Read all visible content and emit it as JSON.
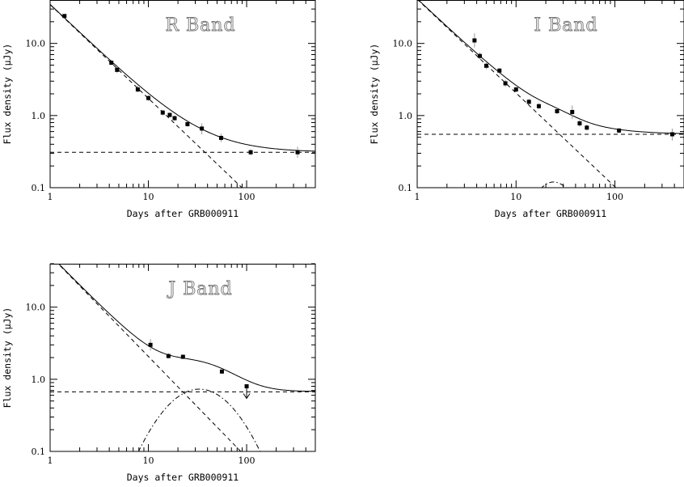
{
  "chart_data": [
    {
      "type": "scatter",
      "title": "R Band",
      "xlabel": "Days after GRB000911",
      "ylabel": "Flux density (μJy)",
      "xscale": "log",
      "yscale": "log",
      "xlim": [
        1,
        500
      ],
      "ylim": [
        0.1,
        40
      ],
      "xticklabels": [
        "1",
        "10",
        "100"
      ],
      "yticklabels": [
        "0.1",
        "1.0",
        "10.0"
      ],
      "series": [
        {
          "kind": "data",
          "points": [
            {
              "x": 1.4,
              "y": 24.0,
              "lo": 23.0,
              "hi": 25.0
            },
            {
              "x": 4.2,
              "y": 5.4,
              "lo": 5.0,
              "hi": 5.9
            },
            {
              "x": 4.8,
              "y": 4.3,
              "lo": 3.9,
              "hi": 4.8
            },
            {
              "x": 7.8,
              "y": 2.3,
              "lo": 2.1,
              "hi": 2.6
            },
            {
              "x": 10.0,
              "y": 1.75,
              "lo": 1.6,
              "hi": 1.9
            },
            {
              "x": 14.0,
              "y": 1.1,
              "lo": 1.0,
              "hi": 1.2
            },
            {
              "x": 16.5,
              "y": 1.02,
              "lo": 0.95,
              "hi": 1.1
            },
            {
              "x": 18.5,
              "y": 0.92,
              "lo": 0.84,
              "hi": 1.0
            },
            {
              "x": 25.0,
              "y": 0.76,
              "lo": 0.7,
              "hi": 0.83
            },
            {
              "x": 35.0,
              "y": 0.66,
              "lo": 0.55,
              "hi": 0.78
            },
            {
              "x": 55.0,
              "y": 0.49,
              "lo": 0.43,
              "hi": 0.56
            },
            {
              "x": 110.0,
              "y": 0.31,
              "lo": 0.28,
              "hi": 0.34
            },
            {
              "x": 330.0,
              "y": 0.31,
              "lo": 0.26,
              "hi": 0.37
            }
          ]
        },
        {
          "kind": "powerlaw",
          "style": "dashed",
          "A": 34.5,
          "alpha": 1.3
        },
        {
          "kind": "constant",
          "style": "dashed",
          "value": 0.31
        }
      ]
    },
    {
      "type": "scatter",
      "title": "I Band",
      "xlabel": "Days after GRB000911",
      "ylabel": "Flux density (μJy)",
      "xscale": "log",
      "yscale": "log",
      "xlim": [
        1,
        500
      ],
      "ylim": [
        0.1,
        40
      ],
      "xticklabels": [
        "1",
        "10",
        "100"
      ],
      "yticklabels": [
        "0.1",
        "1.0",
        "10.0"
      ],
      "series": [
        {
          "kind": "data",
          "points": [
            {
              "x": 3.8,
              "y": 11.0,
              "lo": 8.8,
              "hi": 13.8
            },
            {
              "x": 4.3,
              "y": 6.7,
              "lo": 6.0,
              "hi": 7.5
            },
            {
              "x": 5.0,
              "y": 4.9,
              "lo": 4.4,
              "hi": 5.4
            },
            {
              "x": 6.8,
              "y": 4.2,
              "lo": 3.8,
              "hi": 4.6
            },
            {
              "x": 7.8,
              "y": 2.8,
              "lo": 2.5,
              "hi": 3.1
            },
            {
              "x": 10.0,
              "y": 2.3,
              "lo": 2.1,
              "hi": 2.5
            },
            {
              "x": 13.5,
              "y": 1.55,
              "lo": 1.42,
              "hi": 1.7
            },
            {
              "x": 17.0,
              "y": 1.35,
              "lo": 1.23,
              "hi": 1.48
            },
            {
              "x": 26.0,
              "y": 1.15,
              "lo": 1.05,
              "hi": 1.26
            },
            {
              "x": 37.0,
              "y": 1.12,
              "lo": 0.9,
              "hi": 1.38
            },
            {
              "x": 44.0,
              "y": 0.78,
              "lo": 0.7,
              "hi": 0.88
            },
            {
              "x": 52.0,
              "y": 0.68,
              "lo": 0.62,
              "hi": 0.75
            },
            {
              "x": 110.0,
              "y": 0.62,
              "lo": 0.57,
              "hi": 0.67
            },
            {
              "x": 380.0,
              "y": 0.55,
              "lo": 0.45,
              "hi": 0.66
            }
          ]
        },
        {
          "kind": "powerlaw",
          "style": "dashed",
          "A": 41.0,
          "alpha": 1.3
        },
        {
          "kind": "constant",
          "style": "dashed",
          "value": 0.55
        },
        {
          "kind": "bump",
          "style": "dashdot",
          "peak": 0.12,
          "tpeak": 24.0,
          "width": 0.2
        }
      ]
    },
    {
      "type": "scatter",
      "title": "J Band",
      "xlabel": "Days after GRB000911",
      "ylabel": "Flux density (μJy)",
      "xscale": "log",
      "yscale": "log",
      "xlim": [
        1,
        500
      ],
      "ylim": [
        0.1,
        40
      ],
      "xticklabels": [
        "1",
        "10",
        "100"
      ],
      "yticklabels": [
        "0.1",
        "1.0",
        "10.0"
      ],
      "series": [
        {
          "kind": "data",
          "points": [
            {
              "x": 10.5,
              "y": 3.0,
              "lo": 2.5,
              "hi": 3.6
            },
            {
              "x": 16.0,
              "y": 2.1,
              "lo": 1.95,
              "hi": 2.3
            },
            {
              "x": 22.5,
              "y": 2.05,
              "lo": 1.9,
              "hi": 2.2
            },
            {
              "x": 56.0,
              "y": 1.28,
              "lo": 1.2,
              "hi": 1.37
            }
          ]
        },
        {
          "kind": "upperlimit",
          "x": 100.0,
          "y": 0.8
        },
        {
          "kind": "powerlaw",
          "style": "dashed",
          "A": 52.0,
          "alpha": 1.4
        },
        {
          "kind": "constant",
          "style": "dashed",
          "value": 0.67
        },
        {
          "kind": "bump",
          "style": "dashdot",
          "peak": 0.73,
          "tpeak": 33.0,
          "width": 0.31
        }
      ]
    }
  ]
}
